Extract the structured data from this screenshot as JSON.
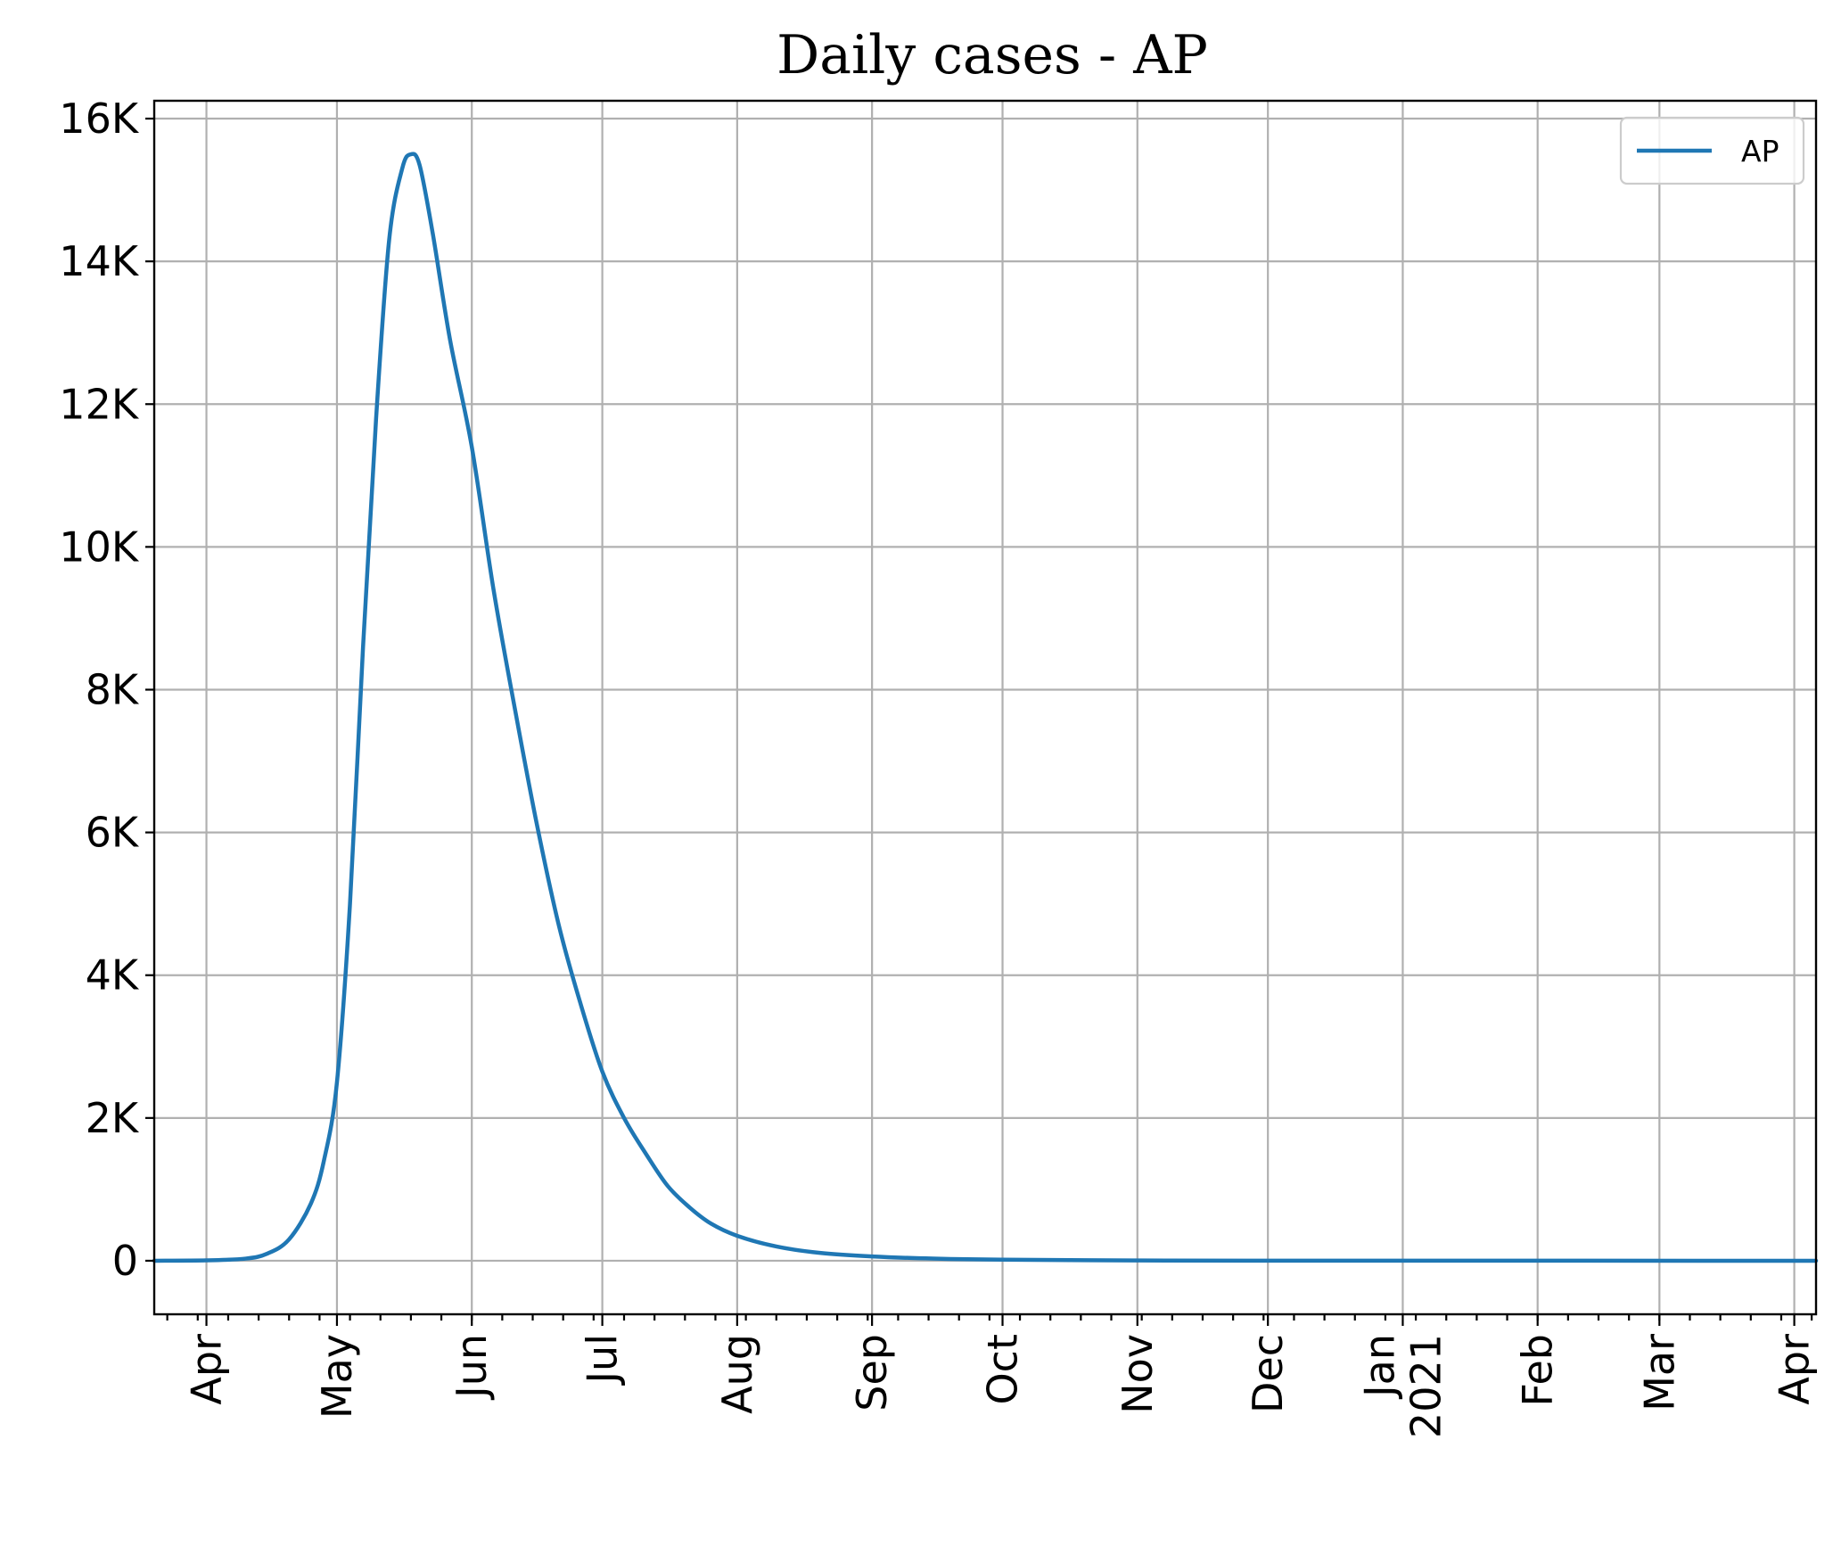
{
  "chart_data": {
    "type": "line",
    "title": "Daily cases - AP",
    "xlabel": "",
    "ylabel": "",
    "x_range": [
      "2020-03-20",
      "2021-04-06"
    ],
    "x_ticks": [
      {
        "date": "2020-04-01",
        "label": "Apr"
      },
      {
        "date": "2020-05-01",
        "label": "May"
      },
      {
        "date": "2020-06-01",
        "label": "Jun"
      },
      {
        "date": "2020-07-01",
        "label": "Jul"
      },
      {
        "date": "2020-08-01",
        "label": "Aug"
      },
      {
        "date": "2020-09-01",
        "label": "Sep"
      },
      {
        "date": "2020-10-01",
        "label": "Oct"
      },
      {
        "date": "2020-11-01",
        "label": "Nov"
      },
      {
        "date": "2020-12-01",
        "label": "Dec"
      },
      {
        "date": "2021-01-01",
        "label": "Jan",
        "label2": "2021"
      },
      {
        "date": "2021-02-01",
        "label": "Feb"
      },
      {
        "date": "2021-03-01",
        "label": "Mar"
      },
      {
        "date": "2021-04-01",
        "label": "Apr"
      }
    ],
    "minor_ticks": "weekly",
    "y_ticks": [
      {
        "value": 0,
        "label": "0"
      },
      {
        "value": 2000,
        "label": "2K"
      },
      {
        "value": 4000,
        "label": "4K"
      },
      {
        "value": 6000,
        "label": "6K"
      },
      {
        "value": 8000,
        "label": "8K"
      },
      {
        "value": 10000,
        "label": "10K"
      },
      {
        "value": 12000,
        "label": "12K"
      },
      {
        "value": 14000,
        "label": "14K"
      },
      {
        "value": 16000,
        "label": "16K"
      }
    ],
    "ylim": [
      -750,
      16250
    ],
    "grid": true,
    "legend": {
      "position": "top-right"
    },
    "series": [
      {
        "name": "AP",
        "color": "#1f77b4",
        "points": [
          {
            "x": "2020-03-20",
            "y": 0
          },
          {
            "x": "2020-04-01",
            "y": 5
          },
          {
            "x": "2020-04-10",
            "y": 30
          },
          {
            "x": "2020-04-15",
            "y": 100
          },
          {
            "x": "2020-04-20",
            "y": 300
          },
          {
            "x": "2020-04-25",
            "y": 800
          },
          {
            "x": "2020-04-28",
            "y": 1400
          },
          {
            "x": "2020-05-01",
            "y": 2500
          },
          {
            "x": "2020-05-04",
            "y": 5000
          },
          {
            "x": "2020-05-07",
            "y": 8600
          },
          {
            "x": "2020-05-10",
            "y": 11800
          },
          {
            "x": "2020-05-13",
            "y": 14300
          },
          {
            "x": "2020-05-16",
            "y": 15300
          },
          {
            "x": "2020-05-18",
            "y": 15500
          },
          {
            "x": "2020-05-20",
            "y": 15350
          },
          {
            "x": "2020-05-23",
            "y": 14400
          },
          {
            "x": "2020-05-27",
            "y": 12900
          },
          {
            "x": "2020-06-01",
            "y": 11400
          },
          {
            "x": "2020-06-06",
            "y": 9400
          },
          {
            "x": "2020-06-11",
            "y": 7700
          },
          {
            "x": "2020-06-16",
            "y": 6100
          },
          {
            "x": "2020-06-21",
            "y": 4700
          },
          {
            "x": "2020-06-26",
            "y": 3600
          },
          {
            "x": "2020-07-01",
            "y": 2650
          },
          {
            "x": "2020-07-06",
            "y": 2000
          },
          {
            "x": "2020-07-11",
            "y": 1500
          },
          {
            "x": "2020-07-16",
            "y": 1050
          },
          {
            "x": "2020-07-21",
            "y": 750
          },
          {
            "x": "2020-07-26",
            "y": 520
          },
          {
            "x": "2020-08-01",
            "y": 350
          },
          {
            "x": "2020-08-10",
            "y": 200
          },
          {
            "x": "2020-08-20",
            "y": 110
          },
          {
            "x": "2020-09-01",
            "y": 60
          },
          {
            "x": "2020-09-15",
            "y": 30
          },
          {
            "x": "2020-10-01",
            "y": 15
          },
          {
            "x": "2020-11-01",
            "y": 4
          },
          {
            "x": "2020-12-01",
            "y": 1
          },
          {
            "x": "2021-04-06",
            "y": 0
          }
        ]
      }
    ]
  }
}
